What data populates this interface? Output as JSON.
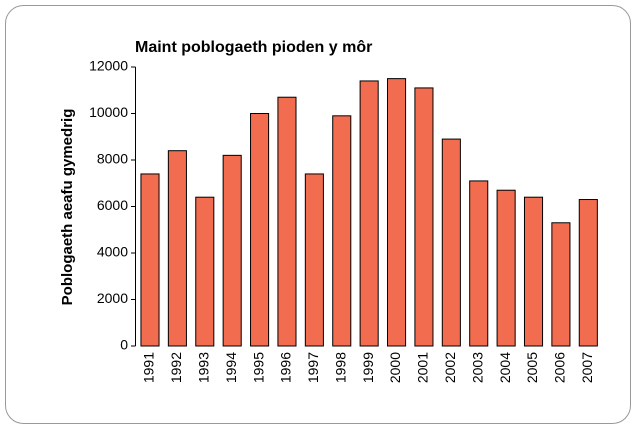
{
  "chart_data": {
    "type": "bar",
    "title": "Maint poblogaeth pioden y môr",
    "y_label": "Poblogaeth aeafu gymedrig",
    "categories": [
      "1991",
      "1992",
      "1993",
      "1994",
      "1995",
      "1996",
      "1997",
      "1998",
      "1999",
      "2000",
      "2001",
      "2002",
      "2003",
      "2004",
      "2005",
      "2006",
      "2007"
    ],
    "values": [
      7400,
      8400,
      6400,
      8200,
      10000,
      10700,
      7400,
      9900,
      11400,
      11500,
      11100,
      8900,
      7100,
      6700,
      6400,
      5300,
      6300
    ],
    "color": "#f26d50",
    "ylim": [
      0,
      12000
    ],
    "yticks": [
      0,
      2000,
      4000,
      6000,
      8000,
      10000,
      12000
    ],
    "grid": false
  }
}
